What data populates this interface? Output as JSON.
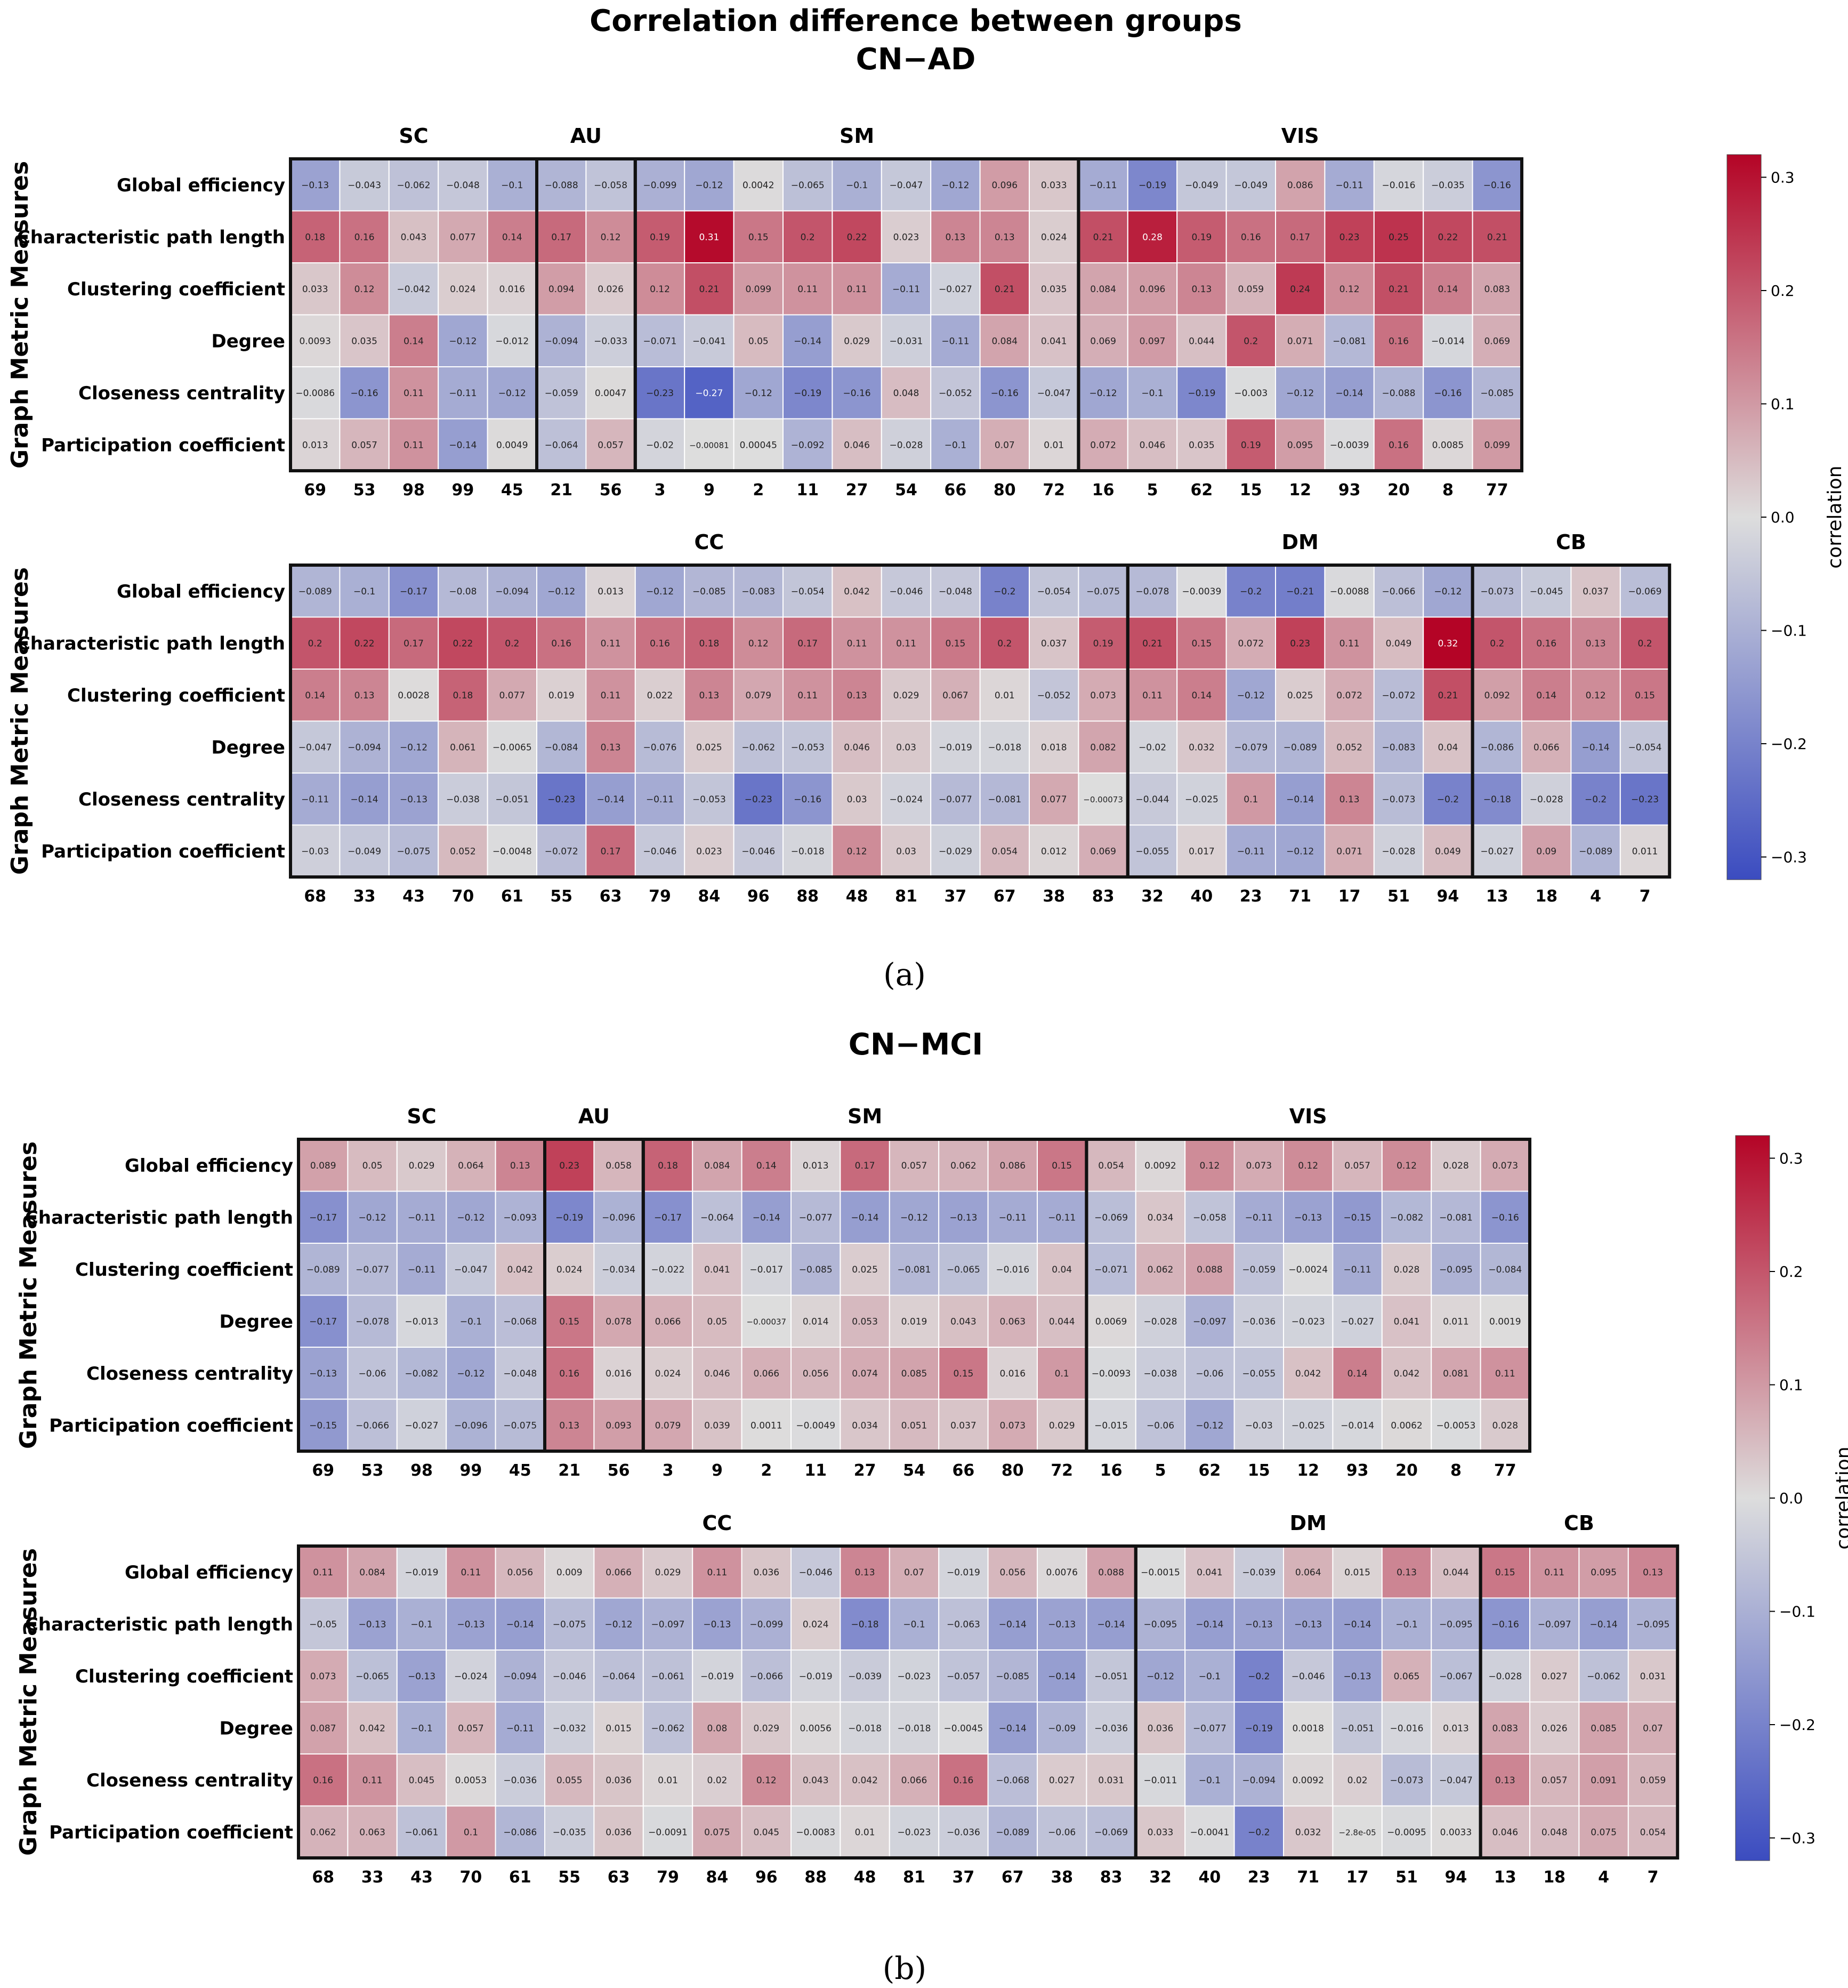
{
  "figure": {
    "title": "Correlation difference between groups",
    "panel_a_title": "CN−AD",
    "panel_b_title": "CN−MCI",
    "panel_a_caption": "(a)",
    "panel_b_caption": "(b)"
  },
  "colorbar": {
    "label": "correlation",
    "ticks": [
      "0.3",
      "0.2",
      "0.1",
      "0.0",
      "−0.1",
      "−0.2",
      "−0.3"
    ],
    "vmin": -0.32,
    "vmax": 0.32,
    "colormap": "coolwarm",
    "color_low": "#3b4cc0",
    "color_mid": "#dddddd",
    "color_high": "#b40426"
  },
  "chart_data": [
    {
      "type": "heatmap",
      "id": "CN-AD-top",
      "ylabel": "Graph Metric Measures",
      "rows": [
        "Global efficiency",
        "Characteristic path length",
        "Clustering coefficient",
        "Degree",
        "Closeness centrality",
        "Participation coefficient"
      ],
      "columns": [
        "69",
        "53",
        "98",
        "99",
        "45",
        "21",
        "56",
        "3",
        "9",
        "2",
        "11",
        "27",
        "54",
        "66",
        "80",
        "72",
        "16",
        "5",
        "62",
        "15",
        "12",
        "93",
        "20",
        "8",
        "77"
      ],
      "groups": [
        {
          "name": "SC",
          "size": 5
        },
        {
          "name": "AU",
          "size": 2
        },
        {
          "name": "SM",
          "size": 9
        },
        {
          "name": "VIS",
          "size": 9
        }
      ],
      "cells": [
        [
          "-0.13",
          "-0.043",
          "-0.062",
          "-0.048",
          "-0.1",
          "-0.088",
          "-0.058",
          "-0.099",
          "-0.12",
          "0.0042",
          "-0.065",
          "-0.1",
          "-0.047",
          "-0.12",
          "0.096",
          "0.033",
          "-0.11",
          "-0.19",
          "-0.049",
          "-0.049",
          "0.086",
          "-0.11",
          "-0.016",
          "-0.035",
          "-0.16"
        ],
        [
          "0.18",
          "0.16",
          "0.043",
          "0.077",
          "0.14",
          "0.17",
          "0.12",
          "0.19",
          "0.31",
          "0.15",
          "0.2",
          "0.22",
          "0.023",
          "0.13",
          "0.13",
          "0.024",
          "0.21",
          "0.28",
          "0.19",
          "0.16",
          "0.17",
          "0.23",
          "0.25",
          "0.22",
          "0.21"
        ],
        [
          "0.033",
          "0.12",
          "-0.042",
          "0.024",
          "0.016",
          "0.094",
          "0.026",
          "0.12",
          "0.21",
          "0.099",
          "0.11",
          "0.11",
          "-0.11",
          "-0.027",
          "0.21",
          "0.035",
          "0.084",
          "0.096",
          "0.13",
          "0.059",
          "0.24",
          "0.12",
          "0.21",
          "0.14",
          "0.083"
        ],
        [
          "0.0093",
          "0.035",
          "0.14",
          "-0.12",
          "-0.012",
          "-0.094",
          "-0.033",
          "-0.071",
          "-0.041",
          "0.05",
          "-0.14",
          "0.029",
          "-0.031",
          "-0.11",
          "0.084",
          "0.041",
          "0.069",
          "0.097",
          "0.044",
          "0.2",
          "0.071",
          "-0.081",
          "0.16",
          "-0.014",
          "0.069"
        ],
        [
          "-0.0086",
          "-0.16",
          "0.11",
          "-0.11",
          "-0.12",
          "-0.059",
          "0.0047",
          "-0.23",
          "-0.27",
          "-0.12",
          "-0.19",
          "-0.16",
          "0.048",
          "-0.052",
          "-0.16",
          "-0.047",
          "-0.12",
          "-0.1",
          "-0.19",
          "-0.003",
          "-0.12",
          "-0.14",
          "-0.088",
          "-0.16",
          "-0.085"
        ],
        [
          "0.013",
          "0.057",
          "0.11",
          "-0.14",
          "0.0049",
          "-0.064",
          "0.057",
          "-0.02",
          "-0.00081",
          "0.00045",
          "-0.092",
          "0.046",
          "-0.028",
          "-0.1",
          "0.07",
          "0.01",
          "0.072",
          "0.046",
          "0.035",
          "0.19",
          "0.095",
          "-0.0039",
          "0.16",
          "0.0085",
          "0.099"
        ]
      ]
    },
    {
      "type": "heatmap",
      "id": "CN-AD-bottom",
      "ylabel": "Graph Metric Measures",
      "rows": [
        "Global efficiency",
        "Characteristic path length",
        "Clustering coefficient",
        "Degree",
        "Closeness centrality",
        "Participation coefficient"
      ],
      "columns": [
        "68",
        "33",
        "43",
        "70",
        "61",
        "55",
        "63",
        "79",
        "84",
        "96",
        "88",
        "48",
        "81",
        "37",
        "67",
        "38",
        "83",
        "32",
        "40",
        "23",
        "71",
        "17",
        "51",
        "94",
        "13",
        "18",
        "4",
        "7"
      ],
      "groups": [
        {
          "name": "CC",
          "size": 17
        },
        {
          "name": "DM",
          "size": 7
        },
        {
          "name": "CB",
          "size": 4
        }
      ],
      "cells": [
        [
          "-0.089",
          "-0.1",
          "-0.17",
          "-0.08",
          "-0.094",
          "-0.12",
          "0.013",
          "-0.12",
          "-0.085",
          "-0.083",
          "-0.054",
          "0.042",
          "-0.046",
          "-0.048",
          "-0.2",
          "-0.054",
          "-0.075",
          "-0.078",
          "-0.0039",
          "-0.2",
          "-0.21",
          "-0.0088",
          "-0.066",
          "-0.12",
          "-0.073",
          "-0.045",
          "0.037",
          "-0.069"
        ],
        [
          "0.2",
          "0.22",
          "0.17",
          "0.22",
          "0.2",
          "0.16",
          "0.11",
          "0.16",
          "0.18",
          "0.12",
          "0.17",
          "0.11",
          "0.11",
          "0.15",
          "0.2",
          "0.037",
          "0.19",
          "0.21",
          "0.15",
          "0.072",
          "0.23",
          "0.11",
          "0.049",
          "0.32",
          "0.2",
          "0.16",
          "0.13",
          "0.2"
        ],
        [
          "0.14",
          "0.13",
          "0.0028",
          "0.18",
          "0.077",
          "0.019",
          "0.11",
          "0.022",
          "0.13",
          "0.079",
          "0.11",
          "0.13",
          "0.029",
          "0.067",
          "0.01",
          "-0.052",
          "0.073",
          "0.11",
          "0.14",
          "-0.12",
          "0.025",
          "0.072",
          "-0.072",
          "0.21",
          "0.092",
          "0.14",
          "0.12",
          "0.15"
        ],
        [
          "-0.047",
          "-0.094",
          "-0.12",
          "0.061",
          "-0.0065",
          "-0.084",
          "0.13",
          "-0.076",
          "0.025",
          "-0.062",
          "-0.053",
          "0.046",
          "0.03",
          "-0.019",
          "-0.018",
          "0.018",
          "0.082",
          "-0.02",
          "0.032",
          "-0.079",
          "-0.089",
          "0.052",
          "-0.083",
          "0.04",
          "-0.086",
          "0.066",
          "-0.14",
          "-0.054"
        ],
        [
          "-0.11",
          "-0.14",
          "-0.13",
          "-0.038",
          "-0.051",
          "-0.23",
          "-0.14",
          "-0.11",
          "-0.053",
          "-0.23",
          "-0.16",
          "0.03",
          "-0.024",
          "-0.077",
          "-0.081",
          "0.077",
          "-0.00073",
          "-0.044",
          "-0.025",
          "0.1",
          "-0.14",
          "0.13",
          "-0.073",
          "-0.2",
          "-0.18",
          "-0.028",
          "-0.2",
          "-0.23"
        ],
        [
          "-0.03",
          "-0.049",
          "-0.075",
          "0.052",
          "-0.0048",
          "-0.072",
          "0.17",
          "-0.046",
          "0.023",
          "-0.046",
          "-0.018",
          "0.12",
          "0.03",
          "-0.029",
          "0.054",
          "0.012",
          "0.069",
          "-0.055",
          "0.017",
          "-0.11",
          "-0.12",
          "0.071",
          "-0.028",
          "0.049",
          "-0.027",
          "0.09",
          "-0.089",
          "0.011"
        ]
      ]
    },
    {
      "type": "heatmap",
      "id": "CN-MCI-top",
      "ylabel": "Graph Metric Measures",
      "rows": [
        "Global efficiency",
        "Characteristic path length",
        "Clustering coefficient",
        "Degree",
        "Closeness centrality",
        "Participation coefficient"
      ],
      "columns": [
        "69",
        "53",
        "98",
        "99",
        "45",
        "21",
        "56",
        "3",
        "9",
        "2",
        "11",
        "27",
        "54",
        "66",
        "80",
        "72",
        "16",
        "5",
        "62",
        "15",
        "12",
        "93",
        "20",
        "8",
        "77"
      ],
      "groups": [
        {
          "name": "SC",
          "size": 5
        },
        {
          "name": "AU",
          "size": 2
        },
        {
          "name": "SM",
          "size": 9
        },
        {
          "name": "VIS",
          "size": 9
        }
      ],
      "cells": [
        [
          "0.089",
          "0.05",
          "0.029",
          "0.064",
          "0.13",
          "0.23",
          "0.058",
          "0.18",
          "0.084",
          "0.14",
          "0.013",
          "0.17",
          "0.057",
          "0.062",
          "0.086",
          "0.15",
          "0.054",
          "0.0092",
          "0.12",
          "0.073",
          "0.12",
          "0.057",
          "0.12",
          "0.028",
          "0.073"
        ],
        [
          "-0.17",
          "-0.12",
          "-0.11",
          "-0.12",
          "-0.093",
          "-0.19",
          "-0.096",
          "-0.17",
          "-0.064",
          "-0.14",
          "-0.077",
          "-0.14",
          "-0.12",
          "-0.13",
          "-0.11",
          "-0.11",
          "-0.069",
          "0.034",
          "-0.058",
          "-0.11",
          "-0.13",
          "-0.15",
          "-0.082",
          "-0.081",
          "-0.16"
        ],
        [
          "-0.089",
          "-0.077",
          "-0.11",
          "-0.047",
          "0.042",
          "0.024",
          "-0.034",
          "-0.022",
          "0.041",
          "-0.017",
          "-0.085",
          "0.025",
          "-0.081",
          "-0.065",
          "-0.016",
          "0.04",
          "-0.071",
          "0.062",
          "0.088",
          "-0.059",
          "-0.0024",
          "-0.11",
          "0.028",
          "-0.095",
          "-0.084"
        ],
        [
          "-0.17",
          "-0.078",
          "-0.013",
          "-0.1",
          "-0.068",
          "0.15",
          "0.078",
          "0.066",
          "0.05",
          "-0.00037",
          "0.014",
          "0.053",
          "0.019",
          "0.043",
          "0.063",
          "0.044",
          "0.0069",
          "-0.028",
          "-0.097",
          "-0.036",
          "-0.023",
          "-0.027",
          "0.041",
          "0.011",
          "0.0019"
        ],
        [
          "-0.13",
          "-0.06",
          "-0.082",
          "-0.12",
          "-0.048",
          "0.16",
          "0.016",
          "0.024",
          "0.046",
          "0.066",
          "0.056",
          "0.074",
          "0.085",
          "0.15",
          "0.016",
          "0.1",
          "-0.0093",
          "-0.038",
          "-0.06",
          "-0.055",
          "0.042",
          "0.14",
          "0.042",
          "0.081",
          "0.11"
        ],
        [
          "-0.15",
          "-0.066",
          "-0.027",
          "-0.096",
          "-0.075",
          "0.13",
          "0.093",
          "0.079",
          "0.039",
          "0.0011",
          "-0.0049",
          "0.034",
          "0.051",
          "0.037",
          "0.073",
          "0.029",
          "-0.015",
          "-0.06",
          "-0.12",
          "-0.03",
          "-0.025",
          "-0.014",
          "0.0062",
          "-0.0053",
          "0.028"
        ]
      ]
    },
    {
      "type": "heatmap",
      "id": "CN-MCI-bottom",
      "ylabel": "Graph Metric Measures",
      "rows": [
        "Global efficiency",
        "Characteristic path length",
        "Clustering coefficient",
        "Degree",
        "Closeness centrality",
        "Participation coefficient"
      ],
      "columns": [
        "68",
        "33",
        "43",
        "70",
        "61",
        "55",
        "63",
        "79",
        "84",
        "96",
        "88",
        "48",
        "81",
        "37",
        "67",
        "38",
        "83",
        "32",
        "40",
        "23",
        "71",
        "17",
        "51",
        "94",
        "13",
        "18",
        "4",
        "7"
      ],
      "groups": [
        {
          "name": "CC",
          "size": 17
        },
        {
          "name": "DM",
          "size": 7
        },
        {
          "name": "CB",
          "size": 4
        }
      ],
      "cells": [
        [
          "0.11",
          "0.084",
          "-0.019",
          "0.11",
          "0.056",
          "0.009",
          "0.066",
          "0.029",
          "0.11",
          "0.036",
          "-0.046",
          "0.13",
          "0.07",
          "-0.019",
          "0.056",
          "0.0076",
          "0.088",
          "-0.0015",
          "0.041",
          "-0.039",
          "0.064",
          "0.015",
          "0.13",
          "0.044",
          "0.15",
          "0.11",
          "0.095",
          "0.13"
        ],
        [
          "-0.05",
          "-0.13",
          "-0.1",
          "-0.13",
          "-0.14",
          "-0.075",
          "-0.12",
          "-0.097",
          "-0.13",
          "-0.099",
          "0.024",
          "-0.18",
          "-0.1",
          "-0.063",
          "-0.14",
          "-0.13",
          "-0.14",
          "-0.095",
          "-0.14",
          "-0.13",
          "-0.13",
          "-0.14",
          "-0.1",
          "-0.095",
          "-0.16",
          "-0.097",
          "-0.14",
          "-0.095"
        ],
        [
          "0.073",
          "-0.065",
          "-0.13",
          "-0.024",
          "-0.094",
          "-0.046",
          "-0.064",
          "-0.061",
          "-0.019",
          "-0.066",
          "-0.019",
          "-0.039",
          "-0.023",
          "-0.057",
          "-0.085",
          "-0.14",
          "-0.051",
          "-0.12",
          "-0.1",
          "-0.2",
          "-0.046",
          "-0.13",
          "0.065",
          "-0.067",
          "-0.028",
          "0.027",
          "-0.062",
          "0.031"
        ],
        [
          "0.087",
          "0.042",
          "-0.1",
          "0.057",
          "-0.11",
          "-0.032",
          "0.015",
          "-0.062",
          "0.08",
          "0.029",
          "0.0056",
          "-0.018",
          "-0.018",
          "-0.0045",
          "-0.14",
          "-0.09",
          "-0.036",
          "0.036",
          "-0.077",
          "-0.19",
          "0.0018",
          "-0.051",
          "-0.016",
          "0.013",
          "0.083",
          "0.026",
          "0.085",
          "0.07"
        ],
        [
          "0.16",
          "0.11",
          "0.045",
          "0.0053",
          "-0.036",
          "0.055",
          "0.036",
          "0.01",
          "0.02",
          "0.12",
          "0.043",
          "0.042",
          "0.066",
          "0.16",
          "-0.068",
          "0.027",
          "0.031",
          "-0.011",
          "-0.1",
          "-0.094",
          "0.0092",
          "0.02",
          "-0.073",
          "-0.047",
          "0.13",
          "0.057",
          "0.091",
          "0.059"
        ],
        [
          "0.062",
          "0.063",
          "-0.061",
          "0.1",
          "-0.086",
          "-0.035",
          "0.036",
          "-0.0091",
          "0.075",
          "0.045",
          "-0.0083",
          "0.01",
          "-0.023",
          "-0.036",
          "-0.089",
          "-0.06",
          "-0.069",
          "0.033",
          "-0.0041",
          "-0.2",
          "0.032",
          "-2.8e-05",
          "-0.0095",
          "0.0033",
          "0.046",
          "0.048",
          "0.075",
          "0.054"
        ]
      ]
    }
  ]
}
